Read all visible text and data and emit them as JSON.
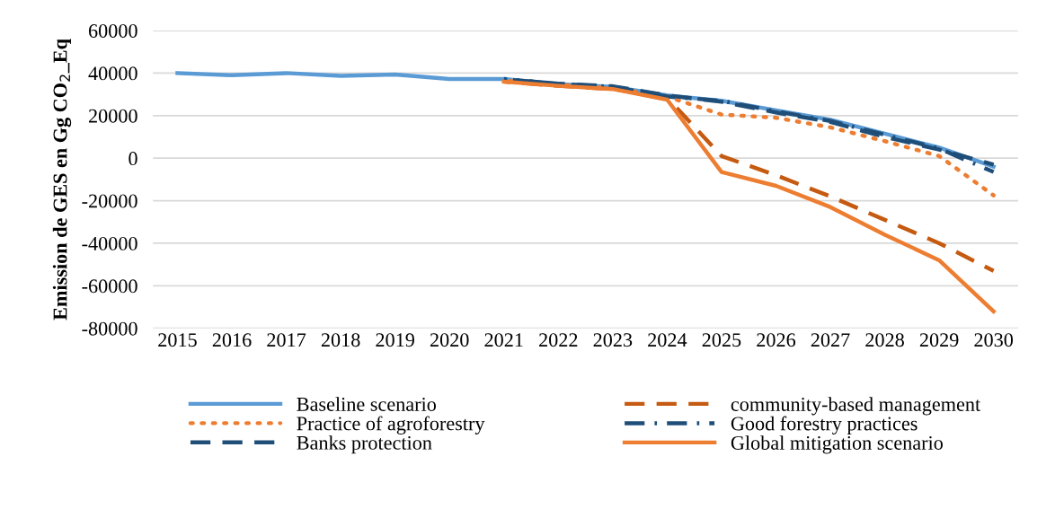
{
  "chart_data": {
    "type": "line",
    "ylabel": "Emission de GES en Gg CO$_{2}$_Eq",
    "x": [
      2015,
      2016,
      2017,
      2018,
      2019,
      2020,
      2021,
      2022,
      2023,
      2024,
      2025,
      2026,
      2027,
      2028,
      2029,
      2030
    ],
    "xticks": [
      2015,
      2016,
      2017,
      2018,
      2019,
      2020,
      2021,
      2022,
      2023,
      2024,
      2025,
      2026,
      2027,
      2028,
      2029,
      2030
    ],
    "xlim": [
      2014.55,
      2030.45
    ],
    "ylim": [
      -80000,
      60000
    ],
    "yticks": [
      -80000,
      -60000,
      -40000,
      -20000,
      0,
      20000,
      40000,
      60000
    ],
    "grid": "y",
    "legend": "bottom",
    "marker": "none",
    "series": [
      {
        "name": "Baseline scenario",
        "color": "#5b9bd5",
        "line_style": "solid",
        "values": [
          40000,
          39000,
          40000,
          38700,
          39300,
          37200,
          37200,
          34800,
          33500,
          29500,
          27000,
          22500,
          18000,
          11500,
          5000,
          -4000
        ]
      },
      {
        "name": "community-based management",
        "color": "#c55a11",
        "line_style": "dashed",
        "values": [
          null,
          null,
          null,
          null,
          null,
          null,
          36000,
          34000,
          32500,
          28500,
          1000,
          -8000,
          -18000,
          -29000,
          -40000,
          -53000
        ]
      },
      {
        "name": "Practice of agroforestry",
        "color": "#ed7d31",
        "line_style": "dotted",
        "values": [
          null,
          null,
          null,
          null,
          null,
          null,
          36500,
          34500,
          33000,
          29000,
          20500,
          19000,
          14500,
          8000,
          1000,
          -17500
        ]
      },
      {
        "name": "Good forestry practices",
        "color": "#1f4e79",
        "line_style": "dashdot",
        "values": [
          null,
          null,
          null,
          null,
          null,
          null,
          37200,
          35000,
          33500,
          29000,
          27000,
          22000,
          17500,
          11000,
          4500,
          -6500
        ]
      },
      {
        "name": "Banks protection",
        "color": "#1f4e79",
        "line_style": "dashed",
        "values": [
          null,
          null,
          null,
          null,
          null,
          null,
          37000,
          35000,
          33800,
          29500,
          26500,
          21500,
          17000,
          10000,
          4000,
          -3000
        ]
      },
      {
        "name": "Global mitigation scenario",
        "color": "#ed7d31",
        "line_style": "solid",
        "values": [
          null,
          null,
          null,
          null,
          null,
          null,
          36000,
          34000,
          32500,
          27500,
          -6500,
          -13000,
          -23000,
          -36000,
          -48000,
          -72000
        ]
      }
    ]
  }
}
